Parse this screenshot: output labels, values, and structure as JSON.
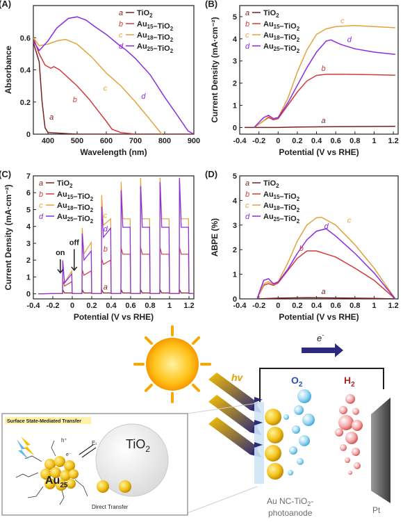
{
  "colors": {
    "a": "#7a1f1f",
    "b": "#d23a3a",
    "c": "#e2a23a",
    "d": "#8a2be2"
  },
  "chart_data": [
    {
      "panel": "(A)",
      "type": "line",
      "xlabel": "Wavelength (nm)",
      "ylabel": "Absorbance",
      "xlim": [
        350,
        900
      ],
      "ylim": [
        0,
        0.8
      ],
      "xticks": [
        400,
        500,
        600,
        700,
        800,
        900
      ],
      "yticks": [
        0.0,
        0.2,
        0.4,
        0.6
      ],
      "legend": [
        "TiO2",
        "Au15–TiO2",
        "Au18–TiO2",
        "Au25–TiO2"
      ],
      "legend_position": "top-right",
      "series": [
        {
          "name": "TiO2",
          "letter": "a",
          "points": [
            [
              350,
              0.57
            ],
            [
              370,
              0.45
            ],
            [
              380,
              0.2
            ],
            [
              390,
              0.04
            ],
            [
              400,
              0.01
            ],
            [
              500,
              0.0
            ],
            [
              700,
              0.0
            ],
            [
              900,
              0.0
            ]
          ]
        },
        {
          "name": "Au15–TiO2",
          "letter": "b",
          "points": [
            [
              350,
              0.6
            ],
            [
              370,
              0.5
            ],
            [
              390,
              0.43
            ],
            [
              410,
              0.41
            ],
            [
              420,
              0.42
            ],
            [
              440,
              0.4
            ],
            [
              470,
              0.35
            ],
            [
              500,
              0.3
            ],
            [
              540,
              0.22
            ],
            [
              570,
              0.15
            ],
            [
              600,
              0.08
            ],
            [
              620,
              0.03
            ],
            [
              650,
              0.01
            ],
            [
              700,
              0.0
            ]
          ]
        },
        {
          "name": "Au18–TiO2",
          "letter": "c",
          "points": [
            [
              350,
              0.6
            ],
            [
              370,
              0.55
            ],
            [
              400,
              0.56
            ],
            [
              430,
              0.58
            ],
            [
              460,
              0.59
            ],
            [
              500,
              0.56
            ],
            [
              550,
              0.48
            ],
            [
              600,
              0.38
            ],
            [
              650,
              0.3
            ],
            [
              700,
              0.2
            ],
            [
              750,
              0.09
            ],
            [
              790,
              0.0
            ]
          ]
        },
        {
          "name": "Au25–TiO2",
          "letter": "d",
          "points": [
            [
              350,
              0.58
            ],
            [
              370,
              0.52
            ],
            [
              400,
              0.58
            ],
            [
              430,
              0.66
            ],
            [
              470,
              0.72
            ],
            [
              500,
              0.73
            ],
            [
              530,
              0.71
            ],
            [
              560,
              0.67
            ],
            [
              600,
              0.62
            ],
            [
              640,
              0.56
            ],
            [
              670,
              0.52
            ],
            [
              700,
              0.47
            ],
            [
              750,
              0.37
            ],
            [
              800,
              0.23
            ],
            [
              850,
              0.1
            ],
            [
              880,
              0.02
            ],
            [
              900,
              0.0
            ]
          ]
        }
      ],
      "labels": [
        {
          "series": "a",
          "x": 405,
          "y": 0.09
        },
        {
          "series": "b",
          "x": 485,
          "y": 0.2
        },
        {
          "series": "c",
          "x": 590,
          "y": 0.27
        },
        {
          "series": "d",
          "x": 720,
          "y": 0.22
        }
      ]
    },
    {
      "panel": "(B)",
      "type": "line",
      "xlabel": "Potential (V vs RHE)",
      "ylabel": "Current Density (mA·cm⁻²)",
      "xlim": [
        -0.4,
        1.25
      ],
      "ylim": [
        -0.3,
        5.5
      ],
      "xticks": [
        -0.4,
        -0.2,
        0.0,
        0.2,
        0.4,
        0.6,
        0.8,
        1.0,
        1.2
      ],
      "yticks": [
        0,
        1,
        2,
        3,
        4,
        5
      ],
      "legend": [
        "TiO2",
        "Au15–TiO2",
        "Au18–TiO2",
        "Au25–TiO2"
      ],
      "legend_position": "top-left",
      "series": [
        {
          "name": "TiO2",
          "letter": "a",
          "points": [
            [
              -0.35,
              0.0
            ],
            [
              0.0,
              0.0
            ],
            [
              0.2,
              0.02
            ],
            [
              0.6,
              0.04
            ],
            [
              1.22,
              0.05
            ]
          ]
        },
        {
          "name": "Au15–TiO2",
          "letter": "b",
          "points": [
            [
              -0.25,
              0.0
            ],
            [
              -0.15,
              0.3
            ],
            [
              -0.1,
              0.45
            ],
            [
              -0.05,
              0.35
            ],
            [
              0.0,
              0.4
            ],
            [
              0.1,
              1.0
            ],
            [
              0.2,
              1.6
            ],
            [
              0.3,
              2.1
            ],
            [
              0.4,
              2.35
            ],
            [
              0.5,
              2.4
            ],
            [
              0.7,
              2.4
            ],
            [
              1.0,
              2.38
            ],
            [
              1.22,
              2.36
            ]
          ]
        },
        {
          "name": "Au18–TiO2",
          "letter": "c",
          "points": [
            [
              -0.25,
              0.0
            ],
            [
              -0.15,
              0.3
            ],
            [
              -0.1,
              0.5
            ],
            [
              -0.05,
              0.4
            ],
            [
              0.0,
              0.45
            ],
            [
              0.1,
              1.3
            ],
            [
              0.2,
              2.5
            ],
            [
              0.3,
              3.5
            ],
            [
              0.4,
              4.2
            ],
            [
              0.5,
              4.45
            ],
            [
              0.6,
              4.55
            ],
            [
              0.8,
              4.6
            ],
            [
              1.0,
              4.55
            ],
            [
              1.22,
              4.5
            ]
          ]
        },
        {
          "name": "Au25–TiO2",
          "letter": "d",
          "points": [
            [
              -0.25,
              0.0
            ],
            [
              -0.15,
              0.45
            ],
            [
              -0.1,
              0.55
            ],
            [
              -0.05,
              0.4
            ],
            [
              0.0,
              0.45
            ],
            [
              0.1,
              1.1
            ],
            [
              0.2,
              1.9
            ],
            [
              0.3,
              2.7
            ],
            [
              0.4,
              3.4
            ],
            [
              0.5,
              3.9
            ],
            [
              0.55,
              3.95
            ],
            [
              0.65,
              3.75
            ],
            [
              0.8,
              3.55
            ],
            [
              1.0,
              3.4
            ],
            [
              1.22,
              3.3
            ]
          ]
        }
      ],
      "labels": [
        {
          "series": "a",
          "x": 0.45,
          "y": 0.2
        },
        {
          "series": "b",
          "x": 0.45,
          "y": 2.55
        },
        {
          "series": "c",
          "x": 0.65,
          "y": 4.7
        },
        {
          "series": "d",
          "x": 0.72,
          "y": 3.85
        }
      ]
    },
    {
      "panel": "(C)",
      "type": "line",
      "xlabel": "Potential (V vs RHE)",
      "ylabel": "Current Density (mA·cm⁻²)",
      "xlim": [
        -0.4,
        1.25
      ],
      "ylim": [
        -0.3,
        7
      ],
      "xticks": [
        -0.4,
        -0.2,
        0.0,
        0.2,
        0.4,
        0.6,
        0.8,
        1.0,
        1.2
      ],
      "yticks": [
        0,
        1,
        2,
        3,
        4,
        5,
        6,
        7
      ],
      "legend": [
        "TiO2",
        "Au15–TiO2",
        "Au18–TiO2",
        "Au25–TiO2"
      ],
      "legend_position": "top-left",
      "annotations": [
        "on",
        "off"
      ],
      "labels": [
        {
          "series": "a",
          "x": 0.32,
          "y": 0.25
        },
        {
          "series": "b",
          "x": 0.32,
          "y": 2.5
        },
        {
          "series": "c",
          "x": 0.32,
          "y": 4.5
        },
        {
          "series": "d",
          "x": 0.32,
          "y": 3.7
        }
      ]
    },
    {
      "panel": "(D)",
      "type": "line",
      "xlabel": "Potential (V vs RHE)",
      "ylabel": "ABPE (%)",
      "xlim": [
        -0.4,
        1.25
      ],
      "ylim": [
        0,
        5
      ],
      "xticks": [
        -0.4,
        -0.2,
        0.0,
        0.2,
        0.4,
        0.6,
        0.8,
        1.0,
        1.2
      ],
      "yticks": [
        0,
        1,
        2,
        3,
        4,
        5
      ],
      "legend": [
        "TiO2",
        "Au15–TiO2",
        "Au18–TiO2",
        "Au25–TiO2"
      ],
      "legend_position": "top-left",
      "series": [
        {
          "name": "TiO2",
          "letter": "a",
          "points": [
            [
              -0.22,
              0.0
            ],
            [
              0.0,
              0.03
            ],
            [
              0.3,
              0.05
            ],
            [
              0.6,
              0.04
            ],
            [
              1.0,
              0.02
            ],
            [
              1.22,
              0.0
            ]
          ]
        },
        {
          "name": "Au15–TiO2",
          "letter": "b",
          "points": [
            [
              -0.22,
              0.0
            ],
            [
              -0.15,
              0.55
            ],
            [
              -0.1,
              0.62
            ],
            [
              -0.05,
              0.55
            ],
            [
              0.0,
              0.65
            ],
            [
              0.1,
              1.15
            ],
            [
              0.2,
              1.65
            ],
            [
              0.3,
              1.95
            ],
            [
              0.4,
              1.95
            ],
            [
              0.6,
              1.7
            ],
            [
              0.8,
              1.25
            ],
            [
              1.0,
              0.75
            ],
            [
              1.22,
              0.0
            ]
          ]
        },
        {
          "name": "Au18–TiO2",
          "letter": "c",
          "points": [
            [
              -0.22,
              0.0
            ],
            [
              -0.15,
              0.6
            ],
            [
              -0.1,
              0.7
            ],
            [
              -0.05,
              0.6
            ],
            [
              0.0,
              0.7
            ],
            [
              0.1,
              1.45
            ],
            [
              0.2,
              2.35
            ],
            [
              0.3,
              3.0
            ],
            [
              0.4,
              3.3
            ],
            [
              0.45,
              3.32
            ],
            [
              0.6,
              3.0
            ],
            [
              0.8,
              2.2
            ],
            [
              1.0,
              1.25
            ],
            [
              1.22,
              0.0
            ]
          ]
        },
        {
          "name": "Au25–TiO2",
          "letter": "d",
          "points": [
            [
              -0.22,
              0.0
            ],
            [
              -0.15,
              0.75
            ],
            [
              -0.1,
              0.82
            ],
            [
              -0.05,
              0.62
            ],
            [
              0.0,
              0.68
            ],
            [
              0.1,
              1.2
            ],
            [
              0.2,
              1.85
            ],
            [
              0.3,
              2.4
            ],
            [
              0.4,
              2.75
            ],
            [
              0.5,
              2.85
            ],
            [
              0.6,
              2.55
            ],
            [
              0.8,
              1.85
            ],
            [
              1.0,
              1.05
            ],
            [
              1.22,
              0.0
            ]
          ]
        }
      ],
      "labels": [
        {
          "series": "a",
          "x": 0.45,
          "y": 0.2
        },
        {
          "series": "b",
          "x": 0.22,
          "y": 1.95
        },
        {
          "series": "c",
          "x": 0.72,
          "y": 3.1
        },
        {
          "series": "d",
          "x": 0.48,
          "y": 2.85
        }
      ]
    }
  ],
  "schematic": {
    "hv": "hv",
    "electron": "e",
    "electron_sup": "-",
    "o2_main": "O",
    "o2_sub": "2",
    "h2_main": "H",
    "h2_sub": "2",
    "photoanode_line1": "Au NC-TiO",
    "photoanode_sub": "2",
    "photoanode_line2": "photoanode",
    "pt": "Pt",
    "inset": {
      "title": "Surface State-Mediated Transfer",
      "tio2_main": "TiO",
      "tio2_sub": "2",
      "cluster_main": "Au",
      "cluster_sub": "25",
      "hplus": "h⁺",
      "eminus": "e⁻",
      "et": "Eₜ",
      "direct": "Direct Transfer"
    }
  }
}
